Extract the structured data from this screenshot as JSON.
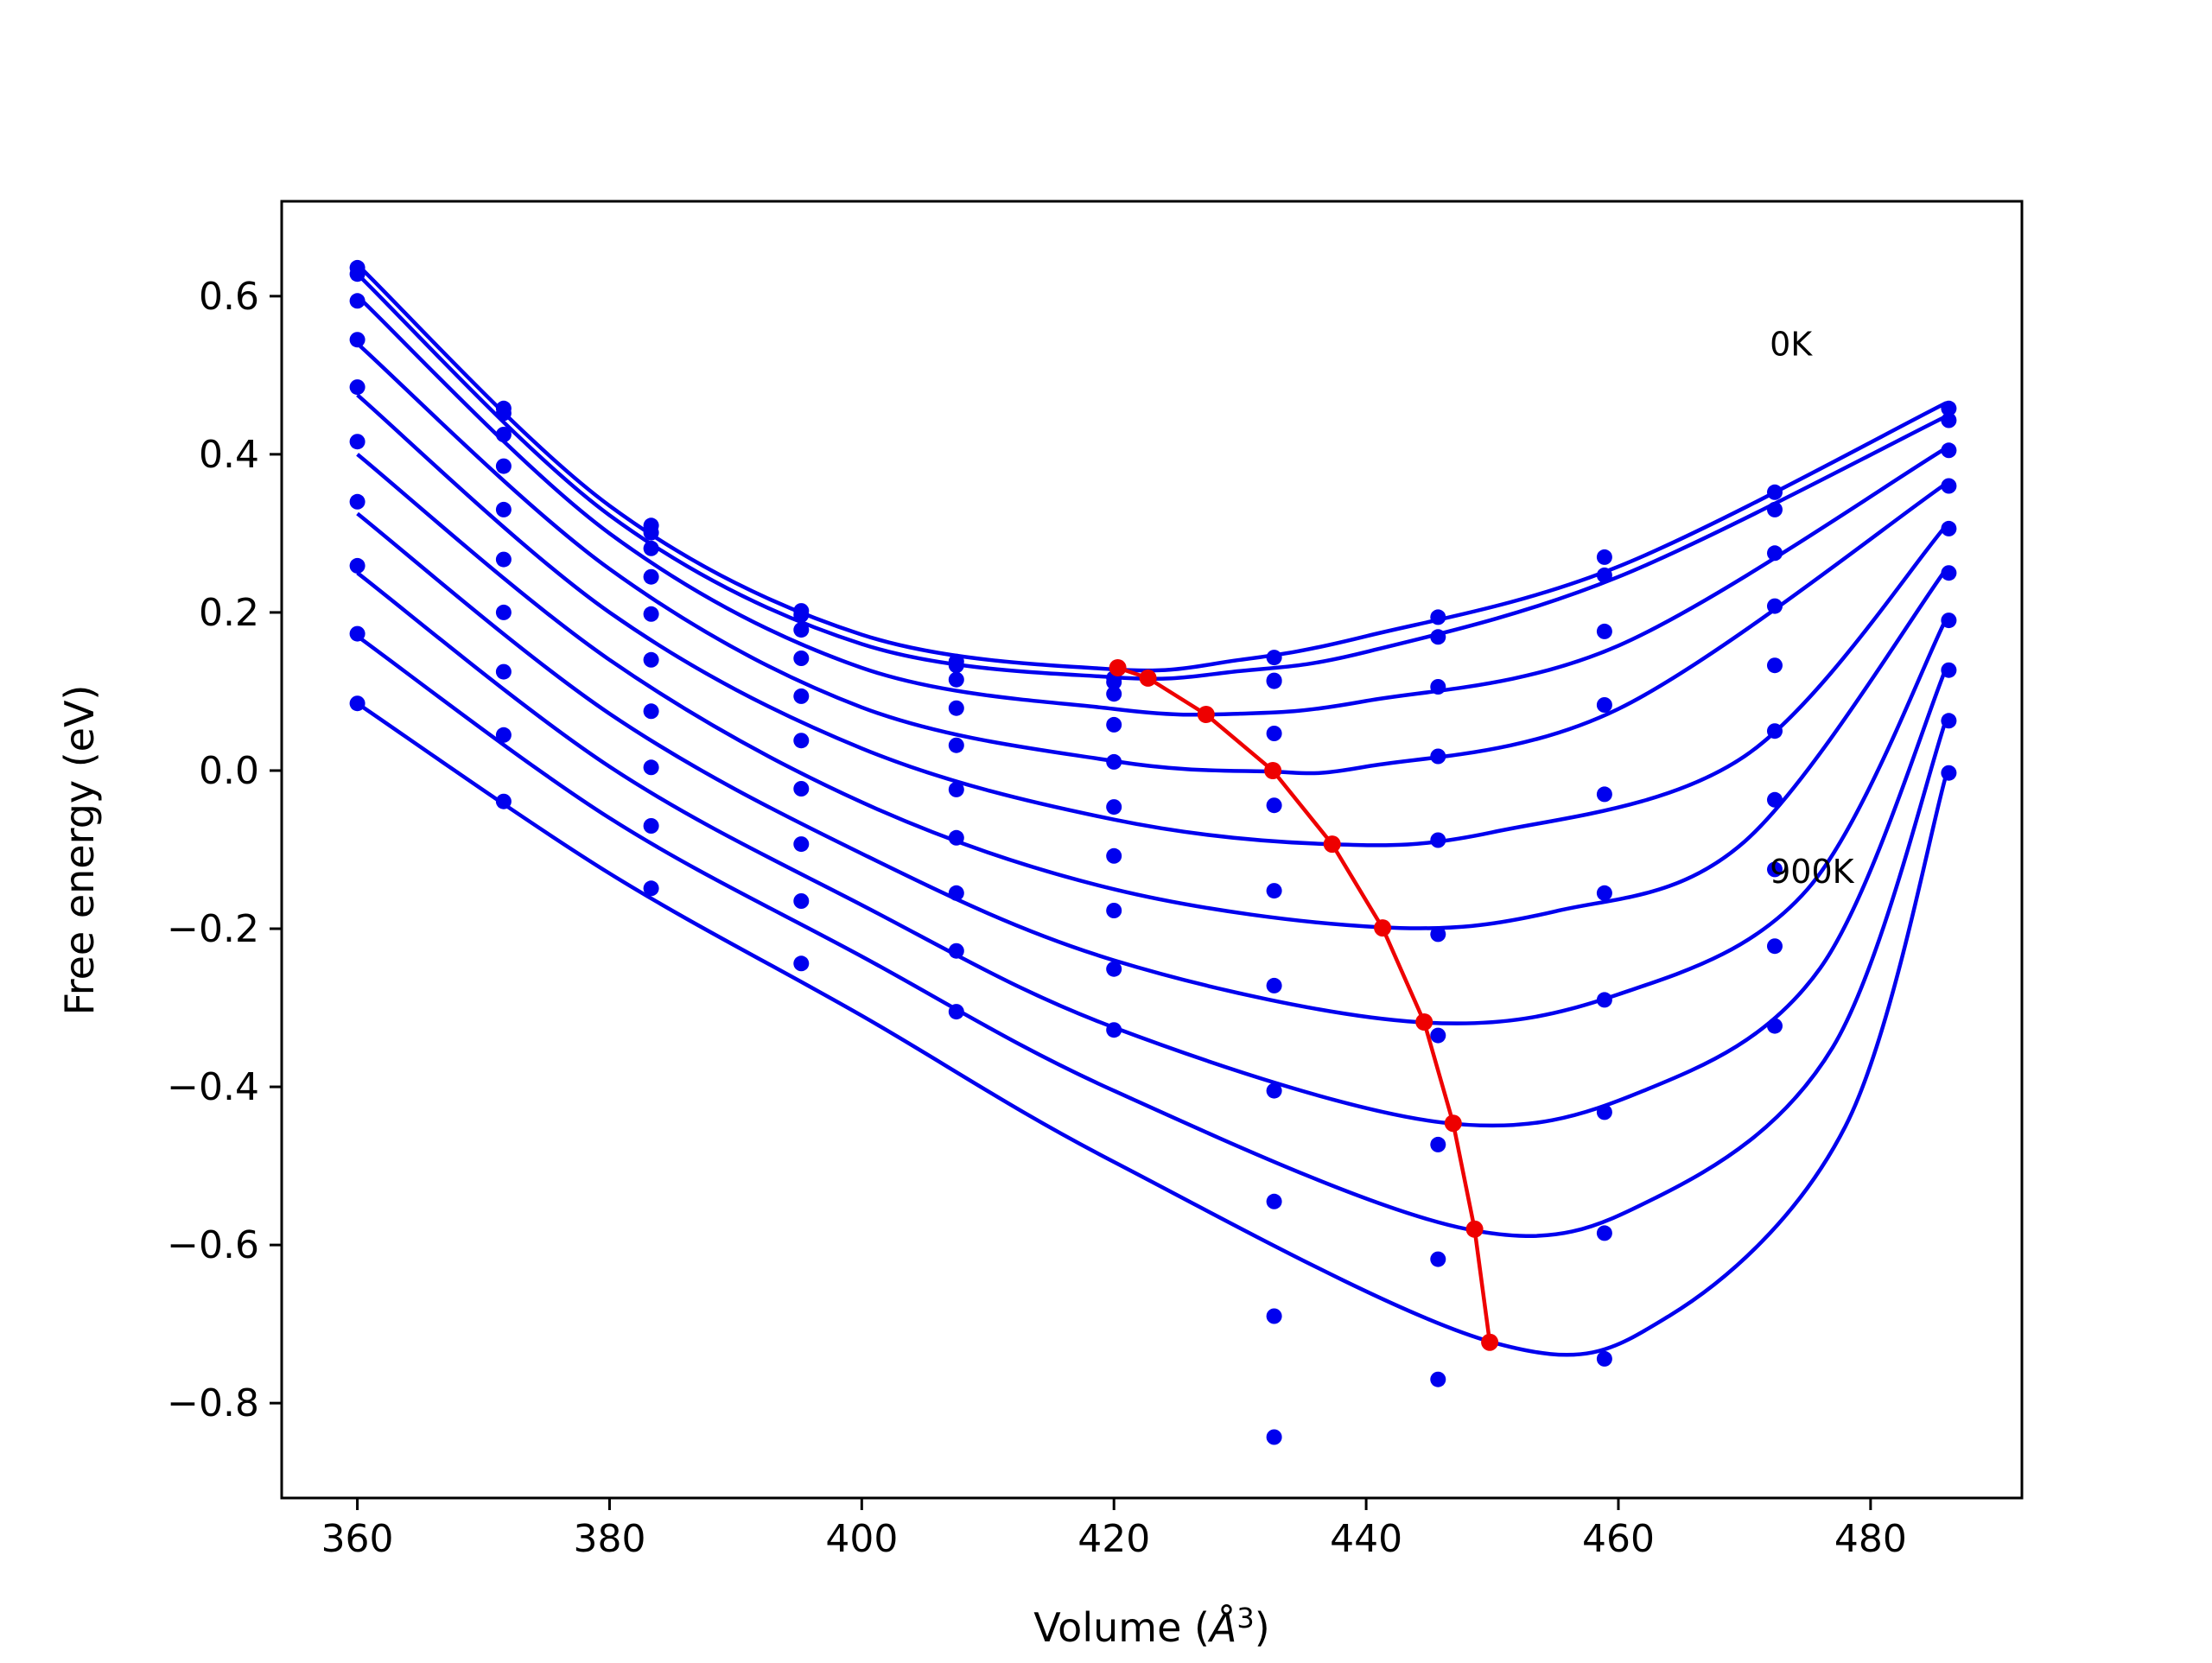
{
  "colors": {
    "isotherm": "#0000ee",
    "minimum_path": "#ee0000",
    "axes": "#000000",
    "background": "#ffffff"
  },
  "chart_data": {
    "type": "scatter",
    "title": "",
    "xlabel": "Volume (",
    "xlabel_symbol": "Å",
    "xlabel_exponent": "3",
    "xlabel_close": ")",
    "ylabel": "Free energy (eV)",
    "xlim": [
      354,
      492
    ],
    "ylim": [
      -0.92,
      0.72
    ],
    "xticks": [
      360,
      380,
      400,
      420,
      440,
      460,
      480
    ],
    "xtick_labels": [
      "360",
      "380",
      "400",
      "420",
      "440",
      "460",
      "480"
    ],
    "yticks": [
      0.6,
      0.4,
      0.2,
      0.0,
      -0.2,
      -0.4,
      -0.6,
      -0.8
    ],
    "ytick_labels": [
      "0.6",
      "0.4",
      "0.2",
      "0.0",
      "−0.2",
      "−0.4",
      "−0.6",
      "−0.8"
    ],
    "grid": false,
    "legend": "none",
    "annotations": [
      {
        "text": "0K",
        "x": 472.0,
        "y": 0.525
      },
      {
        "text": "900K",
        "x": 472.0,
        "y": -0.142
      }
    ],
    "volumes": [
      360.0,
      371.6,
      383.3,
      395.2,
      407.5,
      420.0,
      432.7,
      445.7,
      458.9,
      472.4,
      486.2
    ],
    "series": [
      {
        "points": [
          0.636,
          0.458,
          0.31,
          0.202,
          0.138,
          0.117,
          0.143,
          0.194,
          0.27,
          0.352,
          0.458
        ],
        "fit": [
          [
            360,
            0.64
          ],
          [
            380,
            0.335
          ],
          [
            400,
            0.172
          ],
          [
            420,
            0.128
          ],
          [
            430,
            0.14
          ],
          [
            440,
            0.17
          ],
          [
            460,
            0.258
          ],
          [
            486,
            0.465
          ]
        ],
        "minimum": [
          420.3,
          0.13
        ]
      },
      {
        "points": [
          0.628,
          0.452,
          0.301,
          0.197,
          0.133,
          0.112,
          0.114,
          0.169,
          0.247,
          0.33,
          0.443
        ],
        "fit": [
          [
            360,
            0.628
          ],
          [
            380,
            0.323
          ],
          [
            400,
            0.16
          ],
          [
            420,
            0.118
          ],
          [
            430,
            0.126
          ],
          [
            440,
            0.15
          ],
          [
            460,
            0.245
          ],
          [
            486,
            0.448
          ]
        ],
        "minimum": [
          422.7,
          0.117
        ]
      },
      {
        "points": [
          0.594,
          0.425,
          0.281,
          0.178,
          0.115,
          0.097,
          0.113,
          0.106,
          0.176,
          0.275,
          0.405
        ],
        "fit": [
          [
            360,
            0.6
          ],
          [
            380,
            0.3
          ],
          [
            400,
            0.13
          ],
          [
            420,
            0.078
          ],
          [
            430,
            0.072
          ],
          [
            440,
            0.088
          ],
          [
            460,
            0.158
          ],
          [
            486,
            0.408
          ]
        ],
        "minimum": [
          427.3,
          0.071
        ]
      },
      {
        "points": [
          0.545,
          0.385,
          0.245,
          0.142,
          0.079,
          0.058,
          0.047,
          0.018,
          0.083,
          0.208,
          0.36
        ],
        "fit": [
          [
            360,
            0.54
          ],
          [
            380,
            0.255
          ],
          [
            400,
            0.08
          ],
          [
            420,
            0.012
          ],
          [
            432,
            -0.001
          ],
          [
            440,
            0.005
          ],
          [
            460,
            0.078
          ],
          [
            486,
            0.363
          ]
        ],
        "minimum": [
          432.6,
          0.0
        ]
      },
      {
        "points": [
          0.485,
          0.33,
          0.198,
          0.094,
          0.032,
          0.011,
          -0.044,
          -0.088,
          -0.03,
          0.133,
          0.306
        ],
        "fit": [
          [
            360,
            0.475
          ],
          [
            380,
            0.2
          ],
          [
            400,
            0.028
          ],
          [
            420,
            -0.062
          ],
          [
            437,
            -0.093
          ],
          [
            450,
            -0.078
          ],
          [
            470,
            0.018
          ],
          [
            486,
            0.31
          ]
        ],
        "minimum": [
          437.3,
          -0.093
        ]
      },
      {
        "points": [
          0.416,
          0.267,
          0.14,
          0.038,
          -0.024,
          -0.046,
          -0.152,
          -0.207,
          -0.155,
          0.05,
          0.25
        ],
        "fit": [
          [
            360,
            0.4
          ],
          [
            380,
            0.14
          ],
          [
            400,
            -0.04
          ],
          [
            420,
            -0.15
          ],
          [
            441,
            -0.198
          ],
          [
            455,
            -0.178
          ],
          [
            470,
            -0.09
          ],
          [
            486,
            0.255
          ]
        ],
        "minimum": [
          441.3,
          -0.199
        ]
      },
      {
        "points": [
          0.34,
          0.2,
          0.075,
          -0.023,
          -0.085,
          -0.108,
          -0.272,
          -0.335,
          -0.29,
          -0.037,
          0.19
        ],
        "fit": [
          [
            360,
            0.325
          ],
          [
            380,
            0.072
          ],
          [
            400,
            -0.105
          ],
          [
            420,
            -0.24
          ],
          [
            444,
            -0.318
          ],
          [
            460,
            -0.283
          ],
          [
            475,
            -0.15
          ],
          [
            486,
            0.192
          ]
        ],
        "minimum": [
          444.6,
          -0.318
        ]
      },
      {
        "points": [
          0.259,
          0.125,
          0.004,
          -0.093,
          -0.155,
          -0.177,
          -0.405,
          -0.473,
          -0.432,
          -0.125,
          0.127
        ],
        "fit": [
          [
            360,
            0.25
          ],
          [
            380,
            0.005
          ],
          [
            400,
            -0.17
          ],
          [
            420,
            -0.325
          ],
          [
            446,
            -0.445
          ],
          [
            462,
            -0.405
          ],
          [
            476,
            -0.25
          ],
          [
            486,
            0.13
          ]
        ],
        "minimum": [
          446.9,
          -0.446
        ]
      },
      {
        "points": [
          0.173,
          0.045,
          -0.07,
          -0.165,
          -0.228,
          -0.251,
          -0.545,
          -0.618,
          -0.585,
          -0.222,
          0.063
        ],
        "fit": [
          [
            360,
            0.17
          ],
          [
            380,
            -0.06
          ],
          [
            400,
            -0.235
          ],
          [
            420,
            -0.405
          ],
          [
            448,
            -0.58
          ],
          [
            463,
            -0.54
          ],
          [
            477,
            -0.35
          ],
          [
            486,
            0.065
          ]
        ],
        "minimum": [
          448.6,
          -0.58
        ]
      },
      {
        "points": [
          0.085,
          -0.039,
          -0.149,
          -0.244,
          -0.305,
          -0.328,
          -0.69,
          -0.77,
          -0.744,
          -0.323,
          -0.003
        ],
        "fit": [
          [
            360,
            0.085
          ],
          [
            380,
            -0.13
          ],
          [
            400,
            -0.31
          ],
          [
            420,
            -0.495
          ],
          [
            450,
            -0.723
          ],
          [
            464,
            -0.69
          ],
          [
            478,
            -0.45
          ],
          [
            486,
            -0.005
          ]
        ],
        "minimum": [
          449.8,
          -0.723
        ]
      }
    ],
    "extra_points": [
      [
        432.7,
        -0.843
      ]
    ]
  }
}
